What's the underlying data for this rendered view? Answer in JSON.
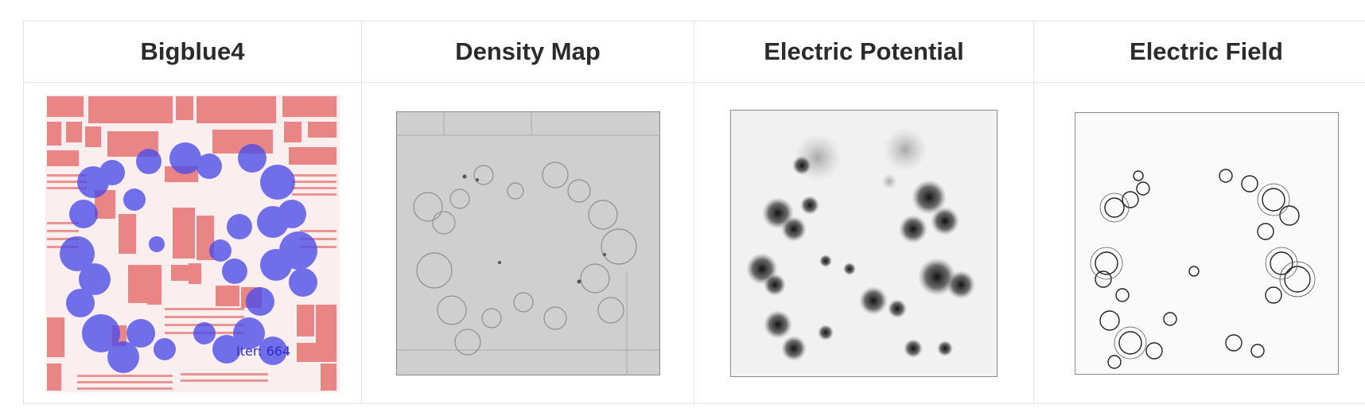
{
  "columns": [
    {
      "title": "Bigblue4",
      "icon": "placement-layout-icon"
    },
    {
      "title": "Density Map",
      "icon": "density-map-icon"
    },
    {
      "title": "Electric Potential",
      "icon": "electric-potential-icon"
    },
    {
      "title": "Electric Field",
      "icon": "electric-field-icon"
    }
  ],
  "placement": {
    "iteration_label": "Iter: 664",
    "macro_color": "#e98585",
    "cell_color": "#4b4bea"
  },
  "colors": {
    "density_background": "#cfcfcf",
    "potential_dark": "#111111",
    "field_line": "#222222"
  }
}
